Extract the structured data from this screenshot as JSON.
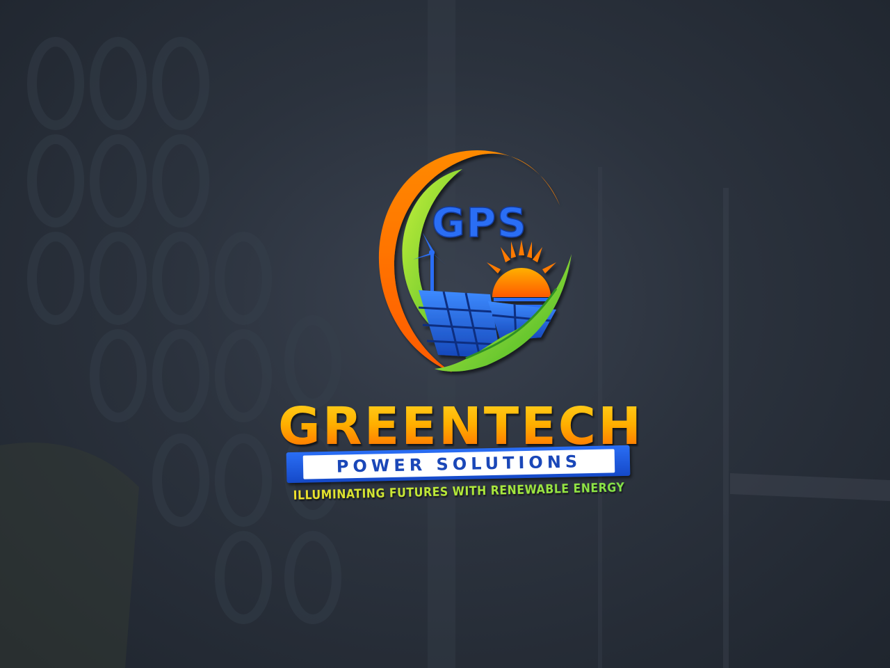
{
  "logo": {
    "monogram": "GPS",
    "name": "GREENTECH",
    "subtitle": "POWER SOLUTIONS",
    "tagline": "ILLUMINATING FUTURES WITH RENEWABLE ENERGY"
  },
  "colors": {
    "background": "#2b323d",
    "orange": "#ff7a00",
    "green": "#7ed321",
    "blue": "#1a5fd6",
    "sun": "#ff8a00"
  }
}
